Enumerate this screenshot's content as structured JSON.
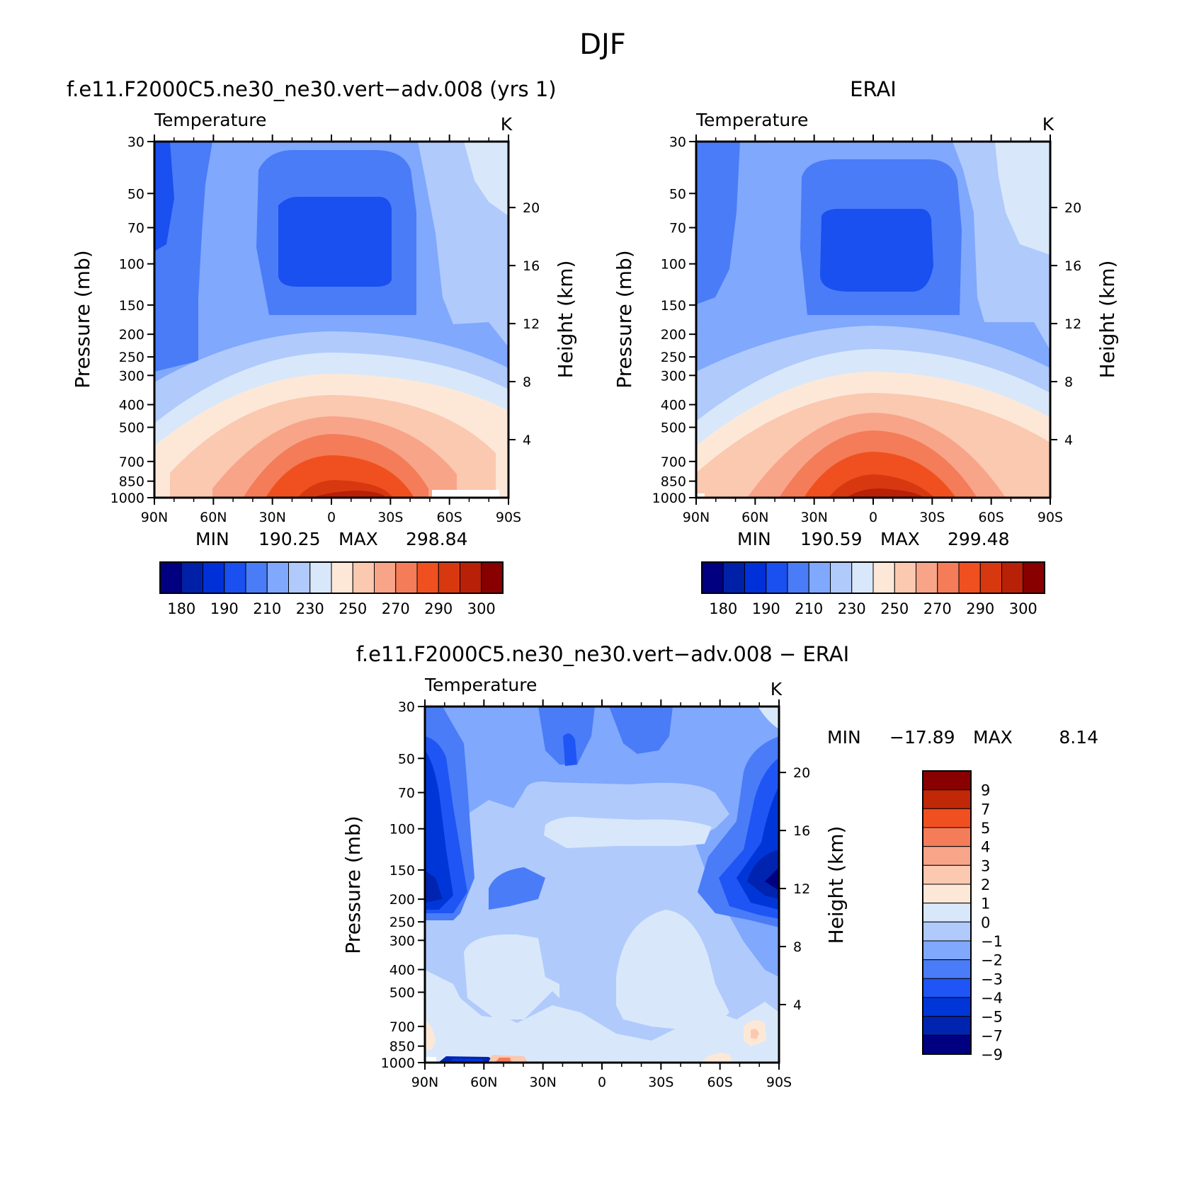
{
  "figure": {
    "title": "DJF",
    "panels": {
      "model": {
        "heading": "f.e11.F2000C5.ne30_ne30.vert−adv.008 (yrs 1)"
      },
      "obs": {
        "heading": "ERAI"
      },
      "diff": {
        "heading": "f.e11.F2000C5.ne30_ne30.vert−adv.008 − ERAI"
      }
    }
  },
  "colors": {
    "temperature_scale": [
      "#000080",
      "#0020a8",
      "#0030d8",
      "#1a4ff0",
      "#4a7cf8",
      "#80a8fc",
      "#b0cafc",
      "#d8e8fa",
      "#fde8d8",
      "#fbc8b0",
      "#f8a488",
      "#f47c58",
      "#f05020",
      "#d83810",
      "#b82008",
      "#880000"
    ],
    "difference_scale": [
      "#000080",
      "#0024b0",
      "#0036d8",
      "#1f55f5",
      "#4a7cf8",
      "#80a8fc",
      "#b0cafc",
      "#d8e8fa",
      "#fde8d8",
      "#fbc8b0",
      "#f8a488",
      "#f47c58",
      "#f05020",
      "#c02808",
      "#880000"
    ]
  },
  "chart_data": [
    {
      "type": "heatmap",
      "title": "Temperature",
      "units": "K",
      "ylabel": "Pressure (mb)",
      "y2label": "Height (km)",
      "x_ticks": [
        "90N",
        "60N",
        "30N",
        "0",
        "30S",
        "60S",
        "90S"
      ],
      "y_ticks": [
        30,
        50,
        70,
        100,
        150,
        200,
        250,
        300,
        400,
        500,
        700,
        850,
        1000
      ],
      "y2_ticks": [
        20,
        16,
        12,
        8,
        4
      ],
      "ylim": [
        1000,
        30
      ],
      "stats": {
        "min_label": "MIN",
        "min": "190.25",
        "max_label": "MAX",
        "max": "298.84"
      },
      "colorbar": {
        "orientation": "horizontal",
        "ticks": [
          "180",
          "190",
          "210",
          "230",
          "250",
          "270",
          "290",
          "300"
        ]
      }
    },
    {
      "type": "heatmap",
      "title": "Temperature",
      "units": "K",
      "ylabel": "Pressure (mb)",
      "y2label": "Height (km)",
      "x_ticks": [
        "90N",
        "60N",
        "30N",
        "0",
        "30S",
        "60S",
        "90S"
      ],
      "y_ticks": [
        30,
        50,
        70,
        100,
        150,
        200,
        250,
        300,
        400,
        500,
        700,
        850,
        1000
      ],
      "y2_ticks": [
        20,
        16,
        12,
        8,
        4
      ],
      "ylim": [
        1000,
        30
      ],
      "stats": {
        "min_label": "MIN",
        "min": "190.59",
        "max_label": "MAX",
        "max": "299.48"
      },
      "colorbar": {
        "orientation": "horizontal",
        "ticks": [
          "180",
          "190",
          "210",
          "230",
          "250",
          "270",
          "290",
          "300"
        ]
      }
    },
    {
      "type": "heatmap",
      "title": "Temperature",
      "units": "K",
      "ylabel": "Pressure (mb)",
      "y2label": "Height (km)",
      "x_ticks": [
        "90N",
        "60N",
        "30N",
        "0",
        "30S",
        "60S",
        "90S"
      ],
      "y_ticks": [
        30,
        50,
        70,
        100,
        150,
        200,
        250,
        300,
        400,
        500,
        700,
        850,
        1000
      ],
      "y2_ticks": [
        20,
        16,
        12,
        8,
        4
      ],
      "ylim": [
        1000,
        30
      ],
      "stats": {
        "min_label": "MIN",
        "min": "−17.89",
        "max_label": "MAX",
        "max": "8.14"
      },
      "colorbar": {
        "orientation": "vertical",
        "ticks": [
          "9",
          "7",
          "5",
          "4",
          "3",
          "2",
          "1",
          "0",
          "−1",
          "−2",
          "−3",
          "−4",
          "−5",
          "−7",
          "−9"
        ]
      }
    }
  ]
}
